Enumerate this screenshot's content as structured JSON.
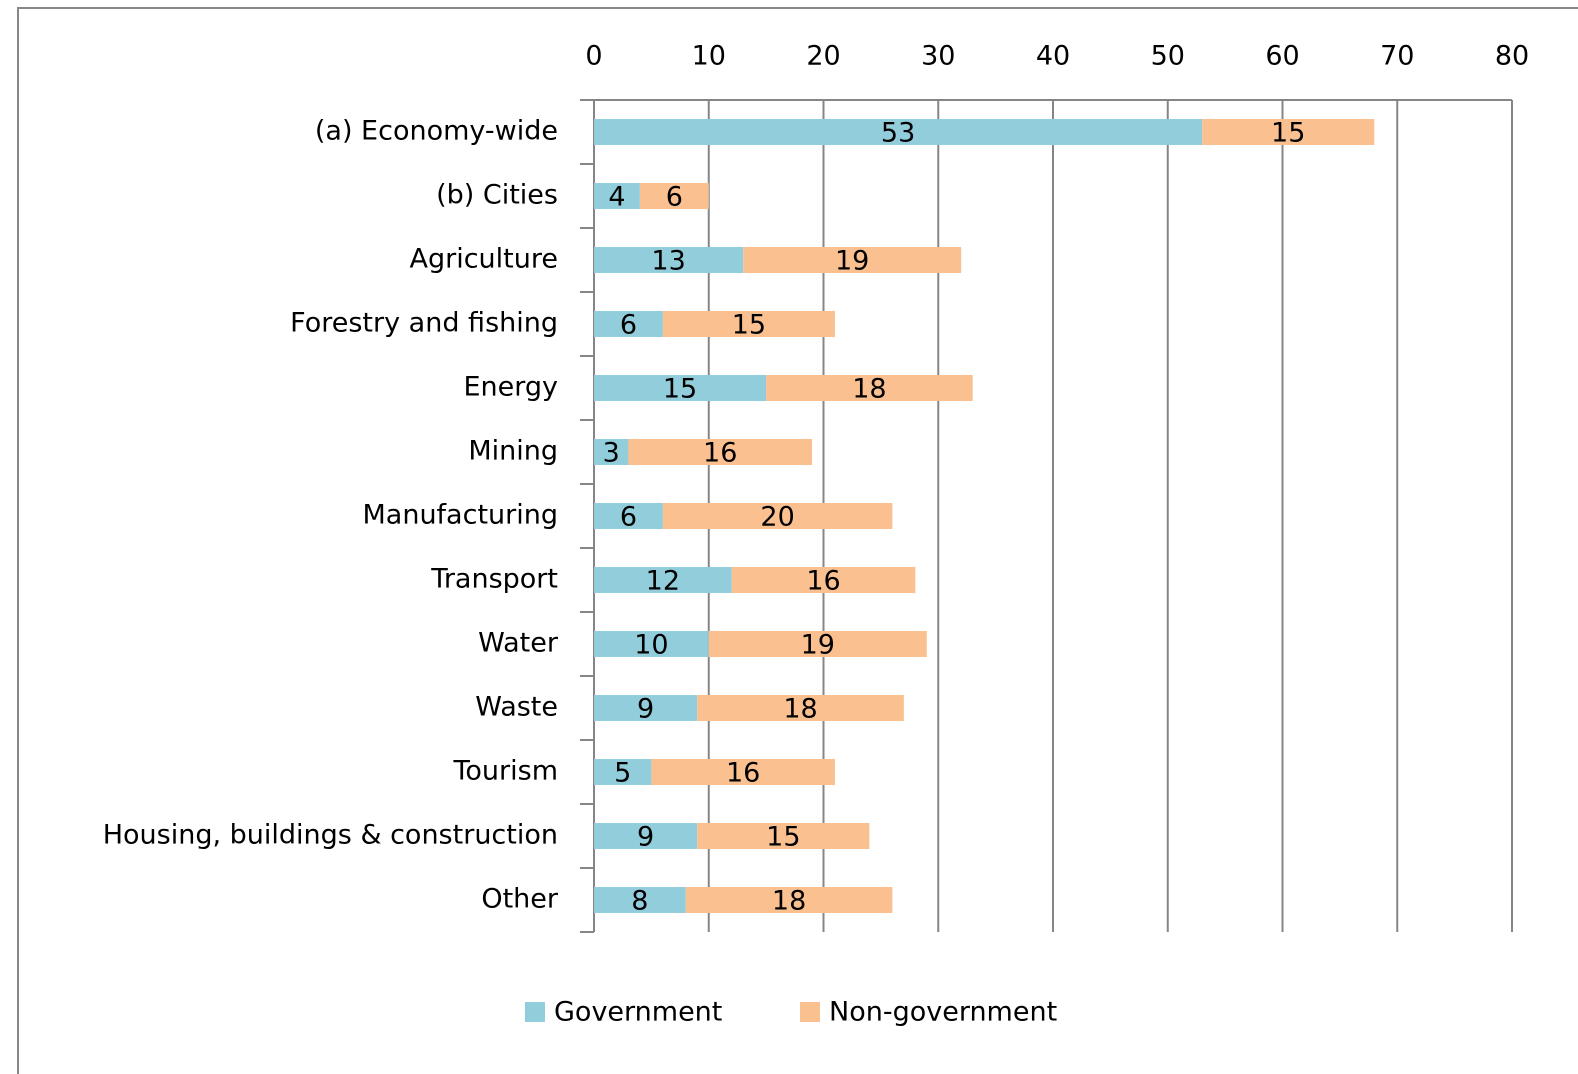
{
  "chart_data": {
    "type": "bar",
    "orientation": "horizontal",
    "stacked": true,
    "categories": [
      "(a) Economy-wide",
      "(b) Cities",
      "Agriculture",
      "Forestry and fishing",
      "Energy",
      "Mining",
      "Manufacturing",
      "Transport",
      "Water",
      "Waste",
      "Tourism",
      "Housing, buildings & construction",
      "Other"
    ],
    "series": [
      {
        "name": "Government",
        "color": "#92cddc",
        "values": [
          53,
          4,
          13,
          6,
          15,
          3,
          6,
          12,
          10,
          9,
          5,
          9,
          8
        ]
      },
      {
        "name": "Non-government",
        "color": "#fac090",
        "values": [
          15,
          6,
          19,
          15,
          18,
          16,
          20,
          16,
          19,
          18,
          16,
          15,
          18
        ]
      }
    ],
    "xlim": [
      0,
      80
    ],
    "xticks": [
      0,
      10,
      20,
      30,
      40,
      50,
      60,
      70,
      80
    ],
    "grid": true,
    "legend": "bottom"
  }
}
